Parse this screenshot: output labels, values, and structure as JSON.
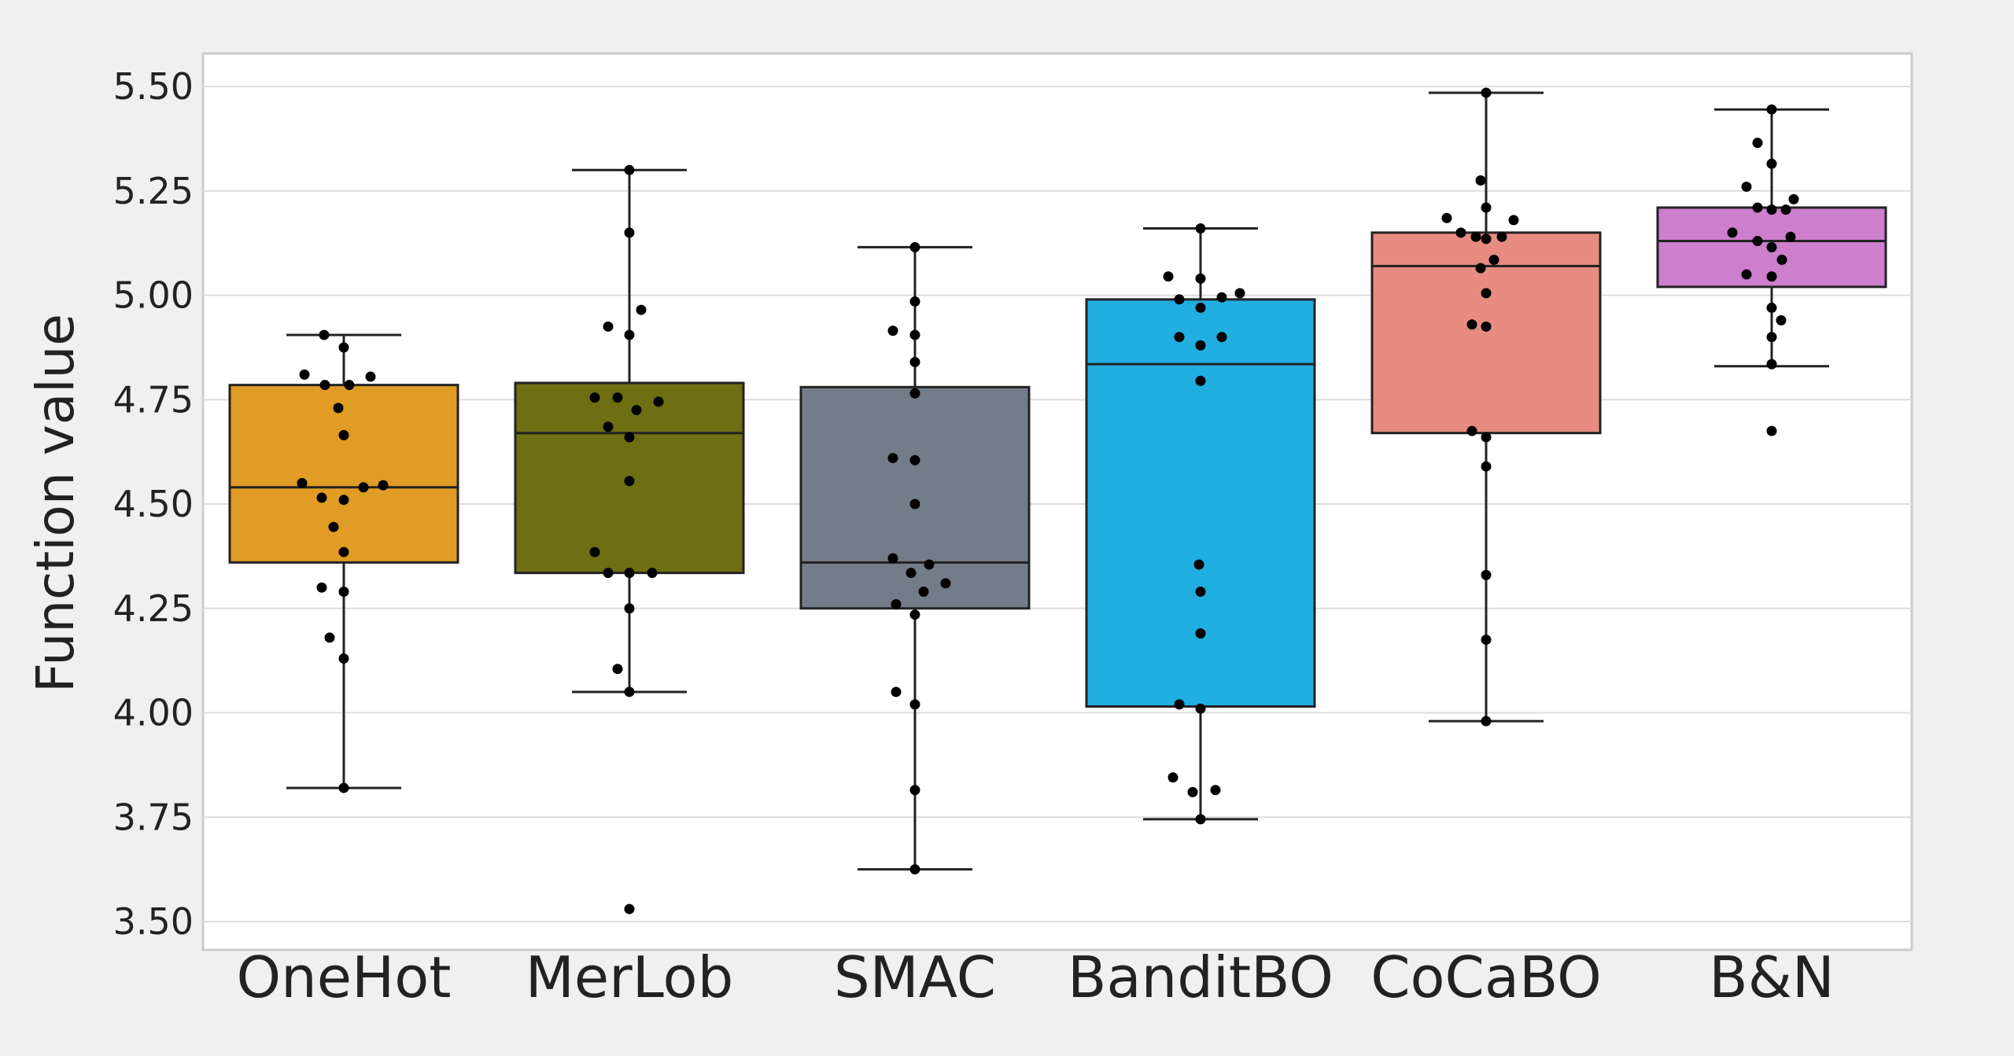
{
  "chart_data": {
    "type": "box",
    "title": "",
    "xlabel": "",
    "ylabel": "Function value",
    "ylim": [
      3.47,
      5.58
    ],
    "yticks": [
      3.5,
      3.75,
      4.0,
      4.25,
      4.5,
      4.75,
      5.0,
      5.25,
      5.5
    ],
    "ytick_labels": [
      "3.50",
      "3.75",
      "4.00",
      "4.25",
      "4.50",
      "4.75",
      "5.00",
      "5.25",
      "5.50"
    ],
    "grid": true,
    "categories": [
      "OneHot",
      "MerLob",
      "SMAC",
      "BanditBO",
      "CoCaBO",
      "B&N"
    ],
    "colors": [
      "#e09c24",
      "#6e6e12",
      "#737d8a",
      "#21aee0",
      "#e88c82",
      "#cd7ecd"
    ],
    "boxes": [
      {
        "name": "OneHot",
        "whisker_low": 3.82,
        "q1": 4.36,
        "median": 4.54,
        "q3": 4.785,
        "whisker_high": 4.905,
        "points": [
          [
            4.905,
            -0.25
          ],
          [
            4.875,
            0
          ],
          [
            4.81,
            -0.5
          ],
          [
            4.785,
            -0.24
          ],
          [
            4.785,
            0.07
          ],
          [
            4.805,
            0.34
          ],
          [
            4.73,
            -0.07
          ],
          [
            4.665,
            0
          ],
          [
            4.55,
            -0.53
          ],
          [
            4.54,
            0.25
          ],
          [
            4.545,
            0.5
          ],
          [
            4.515,
            -0.28
          ],
          [
            4.51,
            0
          ],
          [
            4.445,
            -0.13
          ],
          [
            4.385,
            0
          ],
          [
            4.3,
            -0.28
          ],
          [
            4.29,
            0
          ],
          [
            4.18,
            -0.18
          ],
          [
            4.13,
            0
          ],
          [
            3.82,
            0
          ]
        ]
      },
      {
        "name": "MerLob",
        "whisker_low": 4.05,
        "q1": 4.335,
        "median": 4.67,
        "q3": 4.79,
        "whisker_high": 5.3,
        "points": [
          [
            5.3,
            0
          ],
          [
            5.15,
            0
          ],
          [
            4.965,
            0.15
          ],
          [
            4.925,
            -0.27
          ],
          [
            4.905,
            0
          ],
          [
            4.755,
            -0.44
          ],
          [
            4.755,
            -0.15
          ],
          [
            4.745,
            0.37
          ],
          [
            4.725,
            0.09
          ],
          [
            4.685,
            -0.27
          ],
          [
            4.66,
            0
          ],
          [
            4.555,
            0
          ],
          [
            4.385,
            -0.44
          ],
          [
            4.335,
            -0.27
          ],
          [
            4.335,
            0
          ],
          [
            4.335,
            0.29
          ],
          [
            4.25,
            0
          ],
          [
            4.105,
            -0.15
          ],
          [
            4.05,
            0
          ],
          [
            3.53,
            0
          ]
        ]
      },
      {
        "name": "SMAC",
        "whisker_low": 3.625,
        "q1": 4.25,
        "median": 4.36,
        "q3": 4.78,
        "whisker_high": 5.115,
        "points": [
          [
            5.115,
            0
          ],
          [
            4.985,
            0
          ],
          [
            4.915,
            -0.28
          ],
          [
            4.905,
            0
          ],
          [
            4.84,
            0
          ],
          [
            4.765,
            0
          ],
          [
            4.61,
            -0.28
          ],
          [
            4.605,
            0
          ],
          [
            4.5,
            0
          ],
          [
            4.37,
            -0.28
          ],
          [
            4.355,
            0.18
          ],
          [
            4.335,
            -0.05
          ],
          [
            4.31,
            0.39
          ],
          [
            4.29,
            0.11
          ],
          [
            4.26,
            -0.24
          ],
          [
            4.235,
            0
          ],
          [
            4.05,
            -0.24
          ],
          [
            4.02,
            0
          ],
          [
            3.815,
            0
          ],
          [
            3.625,
            0
          ]
        ]
      },
      {
        "name": "BanditBO",
        "whisker_low": 3.745,
        "q1": 4.015,
        "median": 4.835,
        "q3": 4.99,
        "whisker_high": 5.16,
        "points": [
          [
            5.16,
            0
          ],
          [
            5.045,
            -0.41
          ],
          [
            5.04,
            0
          ],
          [
            5.005,
            0.5
          ],
          [
            4.995,
            0.27
          ],
          [
            4.99,
            -0.27
          ],
          [
            4.97,
            0
          ],
          [
            4.9,
            -0.27
          ],
          [
            4.9,
            0.27
          ],
          [
            4.88,
            0
          ],
          [
            4.795,
            0
          ],
          [
            4.355,
            -0.02
          ],
          [
            4.29,
            0
          ],
          [
            4.19,
            0
          ],
          [
            4.02,
            -0.27
          ],
          [
            4.01,
            0
          ],
          [
            3.845,
            -0.35
          ],
          [
            3.815,
            0.19
          ],
          [
            3.81,
            -0.1
          ],
          [
            3.745,
            0
          ]
        ]
      },
      {
        "name": "CoCaBO",
        "whisker_low": 3.98,
        "q1": 4.67,
        "median": 5.07,
        "q3": 5.15,
        "whisker_high": 5.485,
        "points": [
          [
            5.485,
            0
          ],
          [
            5.275,
            -0.07
          ],
          [
            5.21,
            0
          ],
          [
            5.185,
            -0.5
          ],
          [
            5.18,
            0.35
          ],
          [
            5.15,
            -0.32
          ],
          [
            5.14,
            -0.13
          ],
          [
            5.135,
            0
          ],
          [
            5.14,
            0.2
          ],
          [
            5.085,
            0.1
          ],
          [
            5.065,
            -0.07
          ],
          [
            5.005,
            0
          ],
          [
            4.93,
            -0.18
          ],
          [
            4.925,
            0
          ],
          [
            4.675,
            -0.18
          ],
          [
            4.66,
            0
          ],
          [
            4.59,
            0
          ],
          [
            4.33,
            0
          ],
          [
            4.175,
            0
          ],
          [
            3.98,
            0
          ]
        ]
      },
      {
        "name": "B&N",
        "whisker_low": 4.83,
        "q1": 5.02,
        "median": 5.13,
        "q3": 5.21,
        "whisker_high": 5.445,
        "points": [
          [
            5.445,
            0
          ],
          [
            5.365,
            -0.18
          ],
          [
            5.315,
            0
          ],
          [
            5.26,
            -0.32
          ],
          [
            5.23,
            0.28
          ],
          [
            5.21,
            -0.18
          ],
          [
            5.205,
            0
          ],
          [
            5.205,
            0.18
          ],
          [
            5.15,
            -0.5
          ],
          [
            5.14,
            0.24
          ],
          [
            5.13,
            -0.18
          ],
          [
            5.115,
            0
          ],
          [
            5.085,
            0.13
          ],
          [
            5.05,
            -0.32
          ],
          [
            5.045,
            0
          ],
          [
            4.97,
            0
          ],
          [
            4.94,
            0.12
          ],
          [
            4.9,
            0
          ],
          [
            4.835,
            0
          ],
          [
            4.675,
            0
          ]
        ]
      }
    ]
  }
}
